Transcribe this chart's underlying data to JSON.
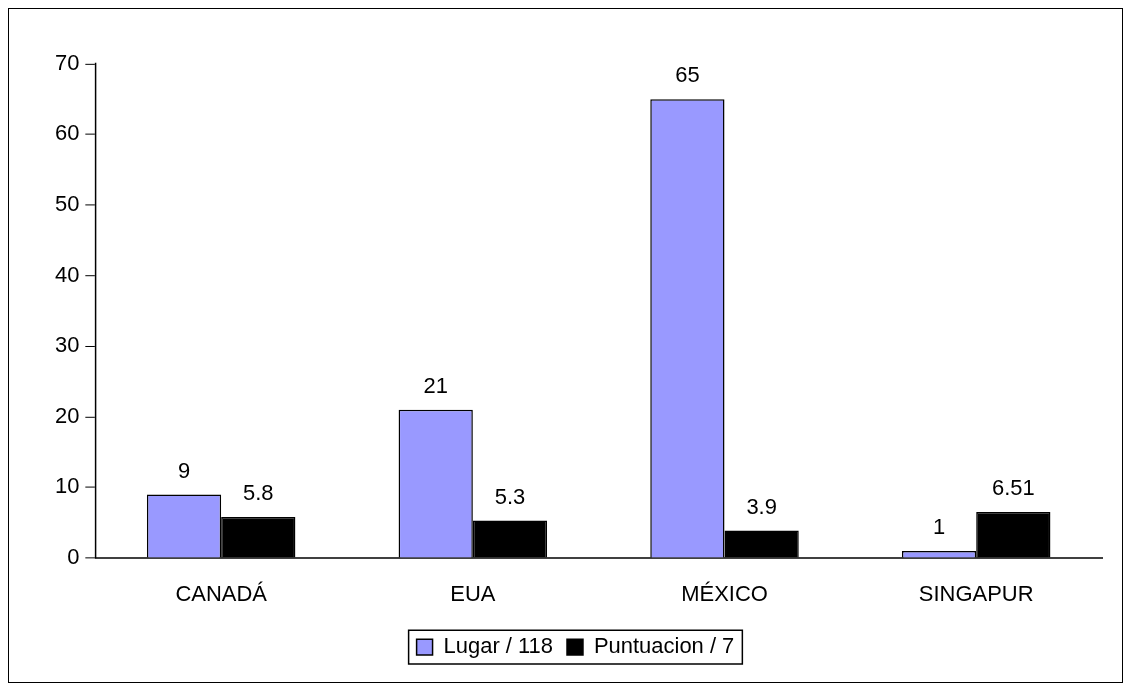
{
  "chart_data": {
    "type": "bar",
    "categories": [
      "CANADÁ",
      "EUA",
      "MÉXICO",
      "SINGAPUR"
    ],
    "series": [
      {
        "name": "Lugar / 118",
        "color": "#9999ff",
        "values": [
          9,
          21,
          65,
          1
        ]
      },
      {
        "name": "Puntuacion / 7",
        "color": "#000000",
        "values": [
          5.8,
          5.3,
          3.9,
          6.51
        ]
      }
    ],
    "ylim": [
      0,
      70
    ],
    "yticks": [
      0,
      10,
      20,
      30,
      40,
      50,
      60,
      70
    ],
    "grid": false,
    "legend": "bottom",
    "data_labels": true
  }
}
